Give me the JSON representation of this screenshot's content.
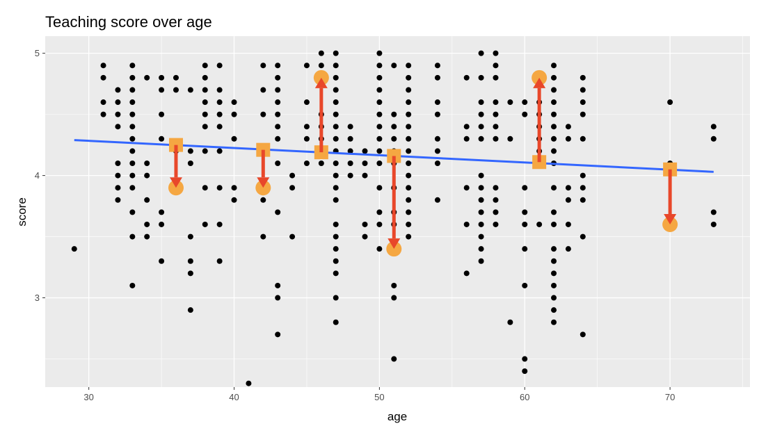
{
  "chart_data": {
    "type": "scatter",
    "title": "Teaching score over age",
    "xlabel": "age",
    "ylabel": "score",
    "xlim": [
      27,
      75.5
    ],
    "ylim": [
      2.27,
      5.14
    ],
    "x_ticks": [
      30,
      40,
      50,
      60,
      70
    ],
    "y_ticks": [
      3,
      4,
      5
    ],
    "x_tick_labels": [
      "30",
      "40",
      "50",
      "60",
      "70"
    ],
    "y_tick_labels": [
      "3",
      "4",
      "5"
    ],
    "grid": true,
    "legend": "none",
    "colors": {
      "panel": "#ebebeb",
      "grid": "#ffffff",
      "points": "#000000",
      "regression_line": "#3366ff",
      "highlight_observed": "#f5a742",
      "highlight_fitted": "#f5a742",
      "residual_arrow": "#e8472a"
    },
    "regression_line": {
      "x": [
        29,
        73
      ],
      "y": [
        4.29,
        4.03
      ]
    },
    "highlighted_residuals": [
      {
        "x": 36,
        "observed": 3.9,
        "fitted": 4.25
      },
      {
        "x": 42,
        "observed": 3.9,
        "fitted": 4.21
      },
      {
        "x": 46,
        "observed": 4.8,
        "fitted": 4.19
      },
      {
        "x": 51,
        "observed": 3.4,
        "fitted": 4.16
      },
      {
        "x": 61,
        "observed": 4.8,
        "fitted": 4.11
      },
      {
        "x": 70,
        "observed": 3.6,
        "fitted": 4.05
      }
    ],
    "points": [
      [
        29,
        3.4
      ],
      [
        31,
        4.9
      ],
      [
        31,
        4.8
      ],
      [
        31,
        4.6
      ],
      [
        31,
        4.5
      ],
      [
        32,
        4.7
      ],
      [
        32,
        4.6
      ],
      [
        32,
        4.5
      ],
      [
        32,
        4.4
      ],
      [
        32,
        4.1
      ],
      [
        32,
        4.0
      ],
      [
        32,
        3.9
      ],
      [
        32,
        3.8
      ],
      [
        33,
        4.9
      ],
      [
        33,
        4.8
      ],
      [
        33,
        4.7
      ],
      [
        33,
        4.6
      ],
      [
        33,
        4.5
      ],
      [
        33,
        4.4
      ],
      [
        33,
        4.3
      ],
      [
        33,
        4.2
      ],
      [
        33,
        4.1
      ],
      [
        33,
        4.0
      ],
      [
        33,
        3.9
      ],
      [
        33,
        3.7
      ],
      [
        33,
        3.5
      ],
      [
        33,
        3.1
      ],
      [
        34,
        4.8
      ],
      [
        34,
        4.1
      ],
      [
        34,
        4.0
      ],
      [
        34,
        3.8
      ],
      [
        34,
        3.6
      ],
      [
        34,
        3.5
      ],
      [
        35,
        4.8
      ],
      [
        35,
        4.7
      ],
      [
        35,
        4.5
      ],
      [
        35,
        4.3
      ],
      [
        35,
        3.7
      ],
      [
        35,
        3.6
      ],
      [
        35,
        3.3
      ],
      [
        36,
        4.8
      ],
      [
        36,
        4.7
      ],
      [
        36,
        4.2
      ],
      [
        37,
        4.7
      ],
      [
        37,
        4.2
      ],
      [
        37,
        4.1
      ],
      [
        37,
        3.5
      ],
      [
        37,
        3.3
      ],
      [
        37,
        3.2
      ],
      [
        37,
        2.9
      ],
      [
        38,
        4.9
      ],
      [
        38,
        4.8
      ],
      [
        38,
        4.7
      ],
      [
        38,
        4.6
      ],
      [
        38,
        4.5
      ],
      [
        38,
        4.4
      ],
      [
        38,
        4.2
      ],
      [
        38,
        3.9
      ],
      [
        38,
        3.6
      ],
      [
        39,
        4.9
      ],
      [
        39,
        4.7
      ],
      [
        39,
        4.6
      ],
      [
        39,
        4.5
      ],
      [
        39,
        4.4
      ],
      [
        39,
        4.2
      ],
      [
        39,
        3.9
      ],
      [
        39,
        3.6
      ],
      [
        39,
        3.3
      ],
      [
        40,
        4.6
      ],
      [
        40,
        4.5
      ],
      [
        40,
        4.3
      ],
      [
        40,
        3.9
      ],
      [
        40,
        3.8
      ],
      [
        41,
        2.3
      ],
      [
        42,
        4.9
      ],
      [
        42,
        4.7
      ],
      [
        42,
        4.5
      ],
      [
        42,
        4.2
      ],
      [
        42,
        3.8
      ],
      [
        42,
        3.5
      ],
      [
        43,
        4.9
      ],
      [
        43,
        4.8
      ],
      [
        43,
        4.7
      ],
      [
        43,
        4.6
      ],
      [
        43,
        4.5
      ],
      [
        43,
        4.4
      ],
      [
        43,
        4.3
      ],
      [
        43,
        4.1
      ],
      [
        43,
        3.7
      ],
      [
        43,
        3.1
      ],
      [
        43,
        3.0
      ],
      [
        43,
        2.7
      ],
      [
        44,
        4.0
      ],
      [
        44,
        3.9
      ],
      [
        44,
        3.5
      ],
      [
        45,
        4.9
      ],
      [
        45,
        4.6
      ],
      [
        45,
        4.4
      ],
      [
        45,
        4.3
      ],
      [
        45,
        4.1
      ],
      [
        46,
        5.0
      ],
      [
        46,
        4.9
      ],
      [
        46,
        4.5
      ],
      [
        46,
        4.4
      ],
      [
        46,
        4.3
      ],
      [
        46,
        4.2
      ],
      [
        46,
        4.1
      ],
      [
        47,
        5.0
      ],
      [
        47,
        4.9
      ],
      [
        47,
        4.8
      ],
      [
        47,
        4.7
      ],
      [
        47,
        4.6
      ],
      [
        47,
        4.5
      ],
      [
        47,
        4.4
      ],
      [
        47,
        4.3
      ],
      [
        47,
        4.2
      ],
      [
        47,
        4.1
      ],
      [
        47,
        4.0
      ],
      [
        47,
        3.9
      ],
      [
        47,
        3.8
      ],
      [
        47,
        3.6
      ],
      [
        47,
        3.5
      ],
      [
        47,
        3.4
      ],
      [
        47,
        3.3
      ],
      [
        47,
        3.2
      ],
      [
        47,
        3.0
      ],
      [
        47,
        2.8
      ],
      [
        48,
        4.4
      ],
      [
        48,
        4.3
      ],
      [
        48,
        4.2
      ],
      [
        48,
        4.1
      ],
      [
        48,
        4.0
      ],
      [
        49,
        4.2
      ],
      [
        49,
        4.1
      ],
      [
        49,
        4.0
      ],
      [
        49,
        3.6
      ],
      [
        49,
        3.5
      ],
      [
        50,
        5.0
      ],
      [
        50,
        4.9
      ],
      [
        50,
        4.8
      ],
      [
        50,
        4.7
      ],
      [
        50,
        4.6
      ],
      [
        50,
        4.5
      ],
      [
        50,
        4.4
      ],
      [
        50,
        4.3
      ],
      [
        50,
        4.2
      ],
      [
        50,
        4.1
      ],
      [
        50,
        3.9
      ],
      [
        50,
        3.7
      ],
      [
        50,
        3.6
      ],
      [
        50,
        3.4
      ],
      [
        51,
        4.9
      ],
      [
        51,
        4.5
      ],
      [
        51,
        4.4
      ],
      [
        51,
        4.3
      ],
      [
        51,
        4.2
      ],
      [
        51,
        4.1
      ],
      [
        51,
        3.9
      ],
      [
        51,
        3.7
      ],
      [
        51,
        3.6
      ],
      [
        51,
        3.1
      ],
      [
        51,
        3.0
      ],
      [
        51,
        2.5
      ],
      [
        52,
        4.9
      ],
      [
        52,
        4.8
      ],
      [
        52,
        4.7
      ],
      [
        52,
        4.6
      ],
      [
        52,
        4.5
      ],
      [
        52,
        4.4
      ],
      [
        52,
        4.3
      ],
      [
        52,
        4.2
      ],
      [
        52,
        4.1
      ],
      [
        52,
        4.0
      ],
      [
        52,
        3.9
      ],
      [
        52,
        3.8
      ],
      [
        52,
        3.7
      ],
      [
        52,
        3.6
      ],
      [
        52,
        3.5
      ],
      [
        54,
        4.9
      ],
      [
        54,
        4.8
      ],
      [
        54,
        4.6
      ],
      [
        54,
        4.5
      ],
      [
        54,
        4.3
      ],
      [
        54,
        4.2
      ],
      [
        54,
        4.1
      ],
      [
        54,
        3.8
      ],
      [
        56,
        4.8
      ],
      [
        56,
        4.4
      ],
      [
        56,
        4.3
      ],
      [
        56,
        3.9
      ],
      [
        56,
        3.6
      ],
      [
        56,
        3.2
      ],
      [
        57,
        5.0
      ],
      [
        57,
        4.8
      ],
      [
        57,
        4.6
      ],
      [
        57,
        4.5
      ],
      [
        57,
        4.4
      ],
      [
        57,
        4.3
      ],
      [
        57,
        4.0
      ],
      [
        57,
        3.9
      ],
      [
        57,
        3.8
      ],
      [
        57,
        3.7
      ],
      [
        57,
        3.6
      ],
      [
        57,
        3.5
      ],
      [
        57,
        3.4
      ],
      [
        57,
        3.3
      ],
      [
        58,
        5.0
      ],
      [
        58,
        4.9
      ],
      [
        58,
        4.8
      ],
      [
        58,
        4.6
      ],
      [
        58,
        4.5
      ],
      [
        58,
        4.4
      ],
      [
        58,
        4.3
      ],
      [
        58,
        3.9
      ],
      [
        58,
        3.8
      ],
      [
        58,
        3.7
      ],
      [
        58,
        3.6
      ],
      [
        59,
        4.6
      ],
      [
        59,
        4.3
      ],
      [
        59,
        2.8
      ],
      [
        60,
        4.6
      ],
      [
        60,
        4.5
      ],
      [
        60,
        3.9
      ],
      [
        60,
        3.7
      ],
      [
        60,
        3.6
      ],
      [
        60,
        3.4
      ],
      [
        60,
        3.1
      ],
      [
        60,
        2.5
      ],
      [
        60,
        2.4
      ],
      [
        61,
        4.6
      ],
      [
        61,
        4.5
      ],
      [
        61,
        4.4
      ],
      [
        61,
        4.3
      ],
      [
        61,
        4.2
      ],
      [
        61,
        3.6
      ],
      [
        62,
        4.9
      ],
      [
        62,
        4.8
      ],
      [
        62,
        4.7
      ],
      [
        62,
        4.6
      ],
      [
        62,
        4.5
      ],
      [
        62,
        4.4
      ],
      [
        62,
        4.3
      ],
      [
        62,
        4.2
      ],
      [
        62,
        4.1
      ],
      [
        62,
        3.9
      ],
      [
        62,
        3.7
      ],
      [
        62,
        3.6
      ],
      [
        62,
        3.4
      ],
      [
        62,
        3.3
      ],
      [
        62,
        3.2
      ],
      [
        62,
        3.1
      ],
      [
        62,
        3.0
      ],
      [
        62,
        2.9
      ],
      [
        62,
        2.8
      ],
      [
        63,
        4.4
      ],
      [
        63,
        4.3
      ],
      [
        63,
        3.9
      ],
      [
        63,
        3.8
      ],
      [
        63,
        3.6
      ],
      [
        63,
        3.4
      ],
      [
        64,
        4.8
      ],
      [
        64,
        4.7
      ],
      [
        64,
        4.6
      ],
      [
        64,
        4.5
      ],
      [
        64,
        4.3
      ],
      [
        64,
        4.0
      ],
      [
        64,
        3.9
      ],
      [
        64,
        3.8
      ],
      [
        64,
        3.5
      ],
      [
        64,
        2.7
      ],
      [
        70,
        4.6
      ],
      [
        70,
        4.1
      ],
      [
        73,
        4.4
      ],
      [
        73,
        4.3
      ],
      [
        73,
        3.7
      ],
      [
        73,
        3.6
      ]
    ]
  }
}
